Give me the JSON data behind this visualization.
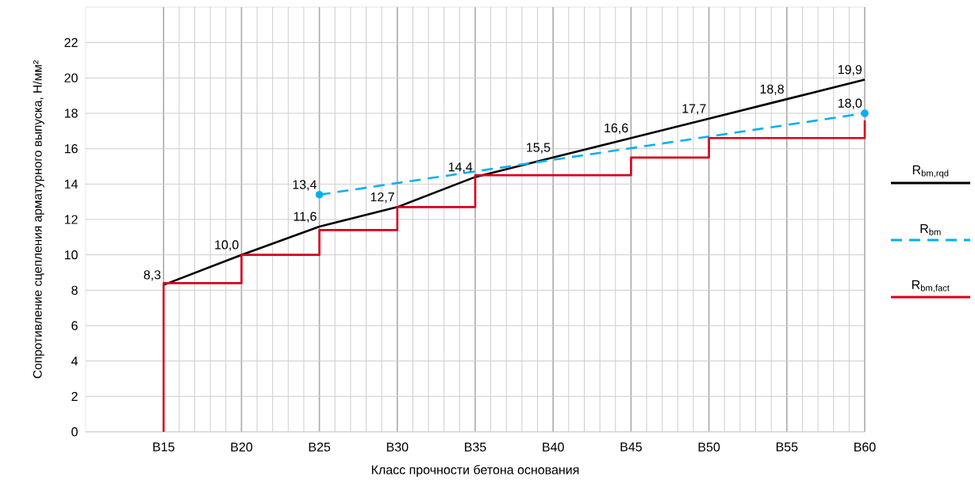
{
  "chart_data": {
    "type": "line",
    "xlabel": "Класс прочности бетона основания",
    "ylabel": "Сопротивление сцепления арматурного выпуска, Н/мм²",
    "categories": [
      "B15",
      "B20",
      "B25",
      "B30",
      "B35",
      "B40",
      "B45",
      "B50",
      "B55",
      "B60"
    ],
    "ylim": [
      0,
      24
    ],
    "yticks": [
      0,
      2,
      4,
      6,
      8,
      10,
      12,
      14,
      16,
      18,
      20,
      22
    ],
    "grid": true,
    "legend": "right",
    "series": [
      {
        "name": "R$_{bm,rqd}$",
        "color": "#000000",
        "line_style": "solid",
        "values": [
          8.3,
          10.0,
          11.6,
          12.7,
          14.4,
          15.5,
          16.6,
          17.7,
          18.8,
          19.9
        ],
        "value_labels": [
          "8,3",
          "10,0",
          "11,6",
          "12,7",
          "14,4",
          "15,5",
          "16,6",
          "17,7",
          "18,8",
          "19,9"
        ]
      },
      {
        "name": "R$_{bm}$",
        "color": "#00b0f0",
        "line_style": "dashed",
        "marker": "circle",
        "x": [
          "B25",
          "B60"
        ],
        "values": [
          13.4,
          18.0
        ],
        "value_labels": [
          "13,4",
          "18,0"
        ]
      },
      {
        "name": "R$_{bm,fact}$",
        "type": "step",
        "color": "#d9001b",
        "line_style": "solid",
        "x": [
          "B15",
          "B15",
          "B20",
          "B25",
          "B30",
          "B35",
          "B45",
          "B50",
          "B60"
        ],
        "values": [
          0,
          8.4,
          10.0,
          11.4,
          12.7,
          14.5,
          15.5,
          16.6,
          17.6
        ]
      }
    ]
  }
}
